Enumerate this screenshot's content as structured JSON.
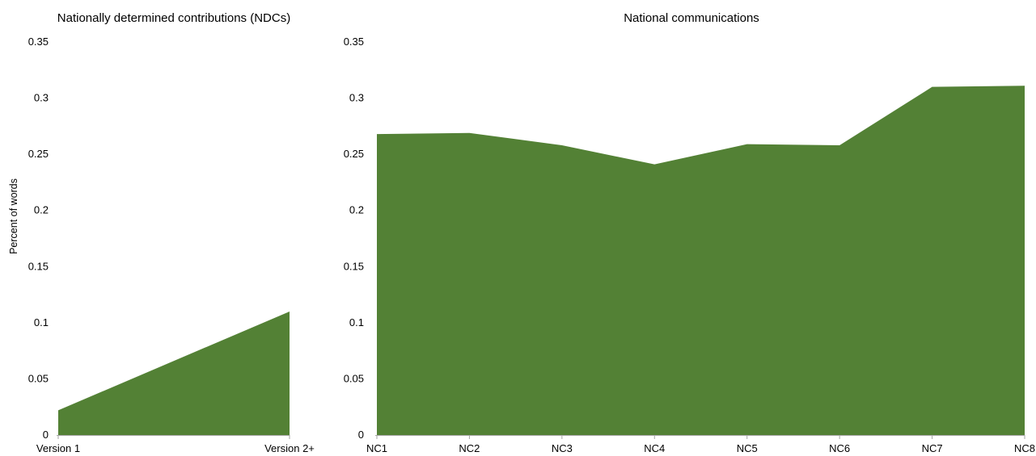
{
  "chart_data": [
    {
      "type": "area",
      "title": "Nationally determined contributions (NDCs)",
      "ylabel": "Percent of words",
      "xlabel": "",
      "categories": [
        "Version 1",
        "Version 2+"
      ],
      "values": [
        0.022,
        0.11
      ],
      "ylim": [
        0,
        0.35
      ],
      "yticks": [
        "0",
        "0.05",
        "0.1",
        "0.15",
        "0.2",
        "0.25",
        "0.3",
        "0.35"
      ],
      "grid": false,
      "color": "#538135"
    },
    {
      "type": "area",
      "title": "National communications",
      "ylabel": "",
      "xlabel": "",
      "categories": [
        "NC1",
        "NC2",
        "NC3",
        "NC4",
        "NC5",
        "NC6",
        "NC7",
        "NC8"
      ],
      "values": [
        0.268,
        0.269,
        0.258,
        0.241,
        0.259,
        0.258,
        0.31,
        0.311
      ],
      "ylim": [
        0,
        0.35
      ],
      "yticks": [
        "0",
        "0.05",
        "0.1",
        "0.15",
        "0.2",
        "0.25",
        "0.3",
        "0.35"
      ],
      "grid": false,
      "color": "#538135"
    }
  ]
}
